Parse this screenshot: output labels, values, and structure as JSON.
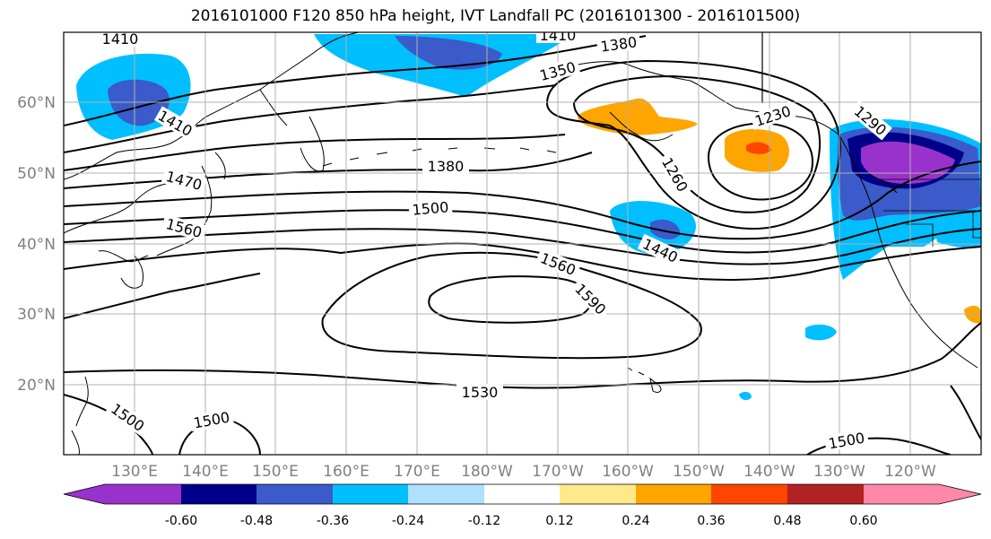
{
  "title": "2016101000 F120 850 hPa height, IVT Landfall PC (2016101300 - 2016101500)",
  "map": {
    "lat_labels": [
      "60°N",
      "50°N",
      "40°N",
      "30°N",
      "20°N"
    ],
    "lon_labels": [
      "130°E",
      "140°E",
      "150°E",
      "160°E",
      "170°E",
      "180°W",
      "170°W",
      "160°W",
      "150°W",
      "140°W",
      "130°W",
      "120°W"
    ]
  },
  "contours": {
    "labels": [
      "1410",
      "1410",
      "1380",
      "1350",
      "1410",
      "1230",
      "1290",
      "1380",
      "1470",
      "1260",
      "1500",
      "1560",
      "1440",
      "1560",
      "1590",
      "1530",
      "1500",
      "1500",
      "1500"
    ]
  },
  "colorbar": {
    "ticks": [
      "-0.60",
      "-0.48",
      "-0.36",
      "-0.24",
      "-0.12",
      "0.12",
      "0.24",
      "0.36",
      "0.48",
      "0.60"
    ],
    "colors": [
      "#9932CC",
      "#00008B",
      "#3A5BC9",
      "#00BFFF",
      "#B0E0FF",
      "#FFFFFF",
      "#FFE98A",
      "#FFA500",
      "#FF4500",
      "#B22222",
      "#FF88AA"
    ]
  }
}
